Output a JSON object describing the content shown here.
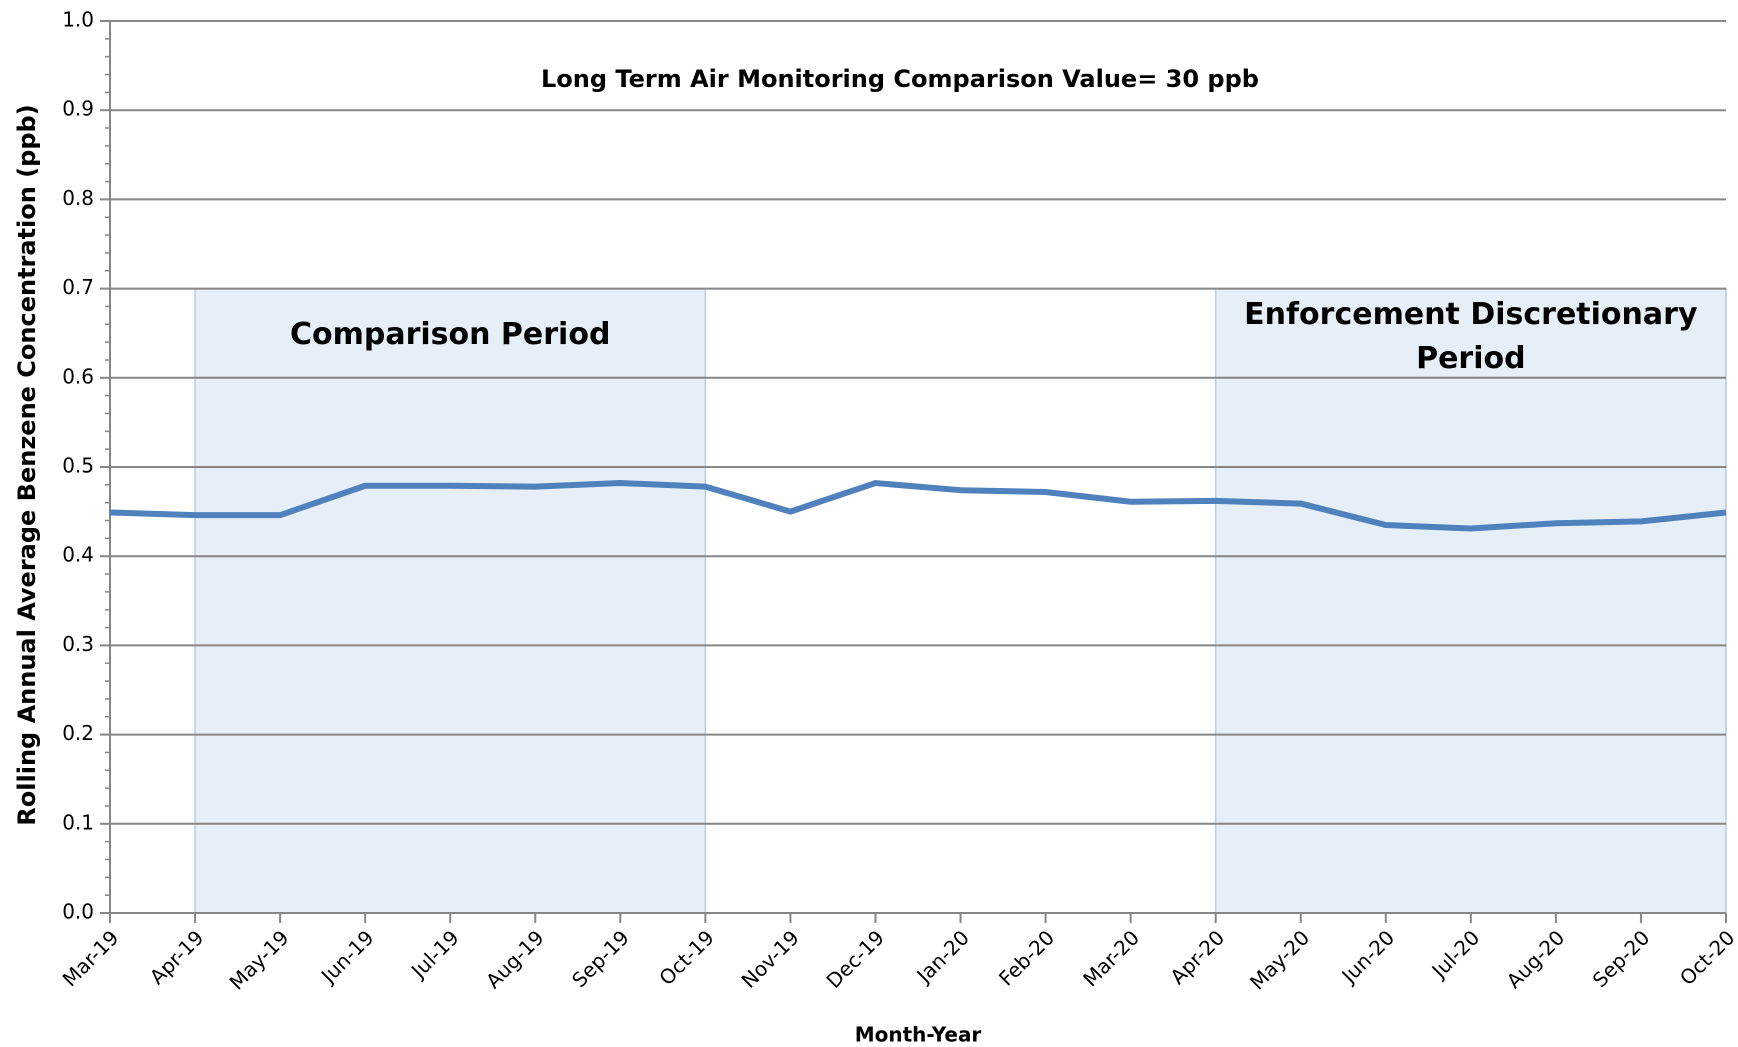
{
  "chart_data": {
    "type": "line",
    "annotation": "Long Term Air Monitoring Comparison  Value= 30 ppb",
    "x_label": "Month-Year",
    "y_label": "Rolling Annual Average Benzene Concentration (ppb)",
    "categories": [
      "Mar-19",
      "Apr-19",
      "May-19",
      "Jun-19",
      "Jul-19",
      "Aug-19",
      "Sep-19",
      "Oct-19",
      "Nov-19",
      "Dec-19",
      "Jan-20",
      "Feb-20",
      "Mar-20",
      "Apr-20",
      "May-20",
      "Jun-20",
      "Jul-20",
      "Aug-20",
      "Sep-20",
      "Oct-20"
    ],
    "values": [
      0.449,
      0.446,
      0.446,
      0.479,
      0.479,
      0.478,
      0.482,
      0.478,
      0.45,
      0.482,
      0.474,
      0.472,
      0.461,
      0.462,
      0.459,
      0.435,
      0.431,
      0.437,
      0.439,
      0.449
    ],
    "color": "#4f81bd",
    "ylim": [
      0,
      1
    ],
    "yticks": [
      {
        "value": 0,
        "label": "0.0"
      },
      0.1,
      0.2,
      0.3,
      0.4,
      0.5,
      0.6,
      0.7,
      0.8,
      0.9,
      {
        "value": 1,
        "label": "1.0"
      }
    ],
    "yminor_divisions": 5,
    "grid": true,
    "shaded_periods": [
      {
        "label": [
          "Comparison  Period"
        ],
        "start": "Apr-19",
        "end": "Oct-19",
        "top": 0.7,
        "color": "#e6eef8"
      },
      {
        "label": [
          "Enforcement Discretionary",
          "Period"
        ],
        "start": "Apr-20",
        "end": "Oct-20",
        "top": 0.7,
        "color": "#e6eef8"
      }
    ]
  }
}
